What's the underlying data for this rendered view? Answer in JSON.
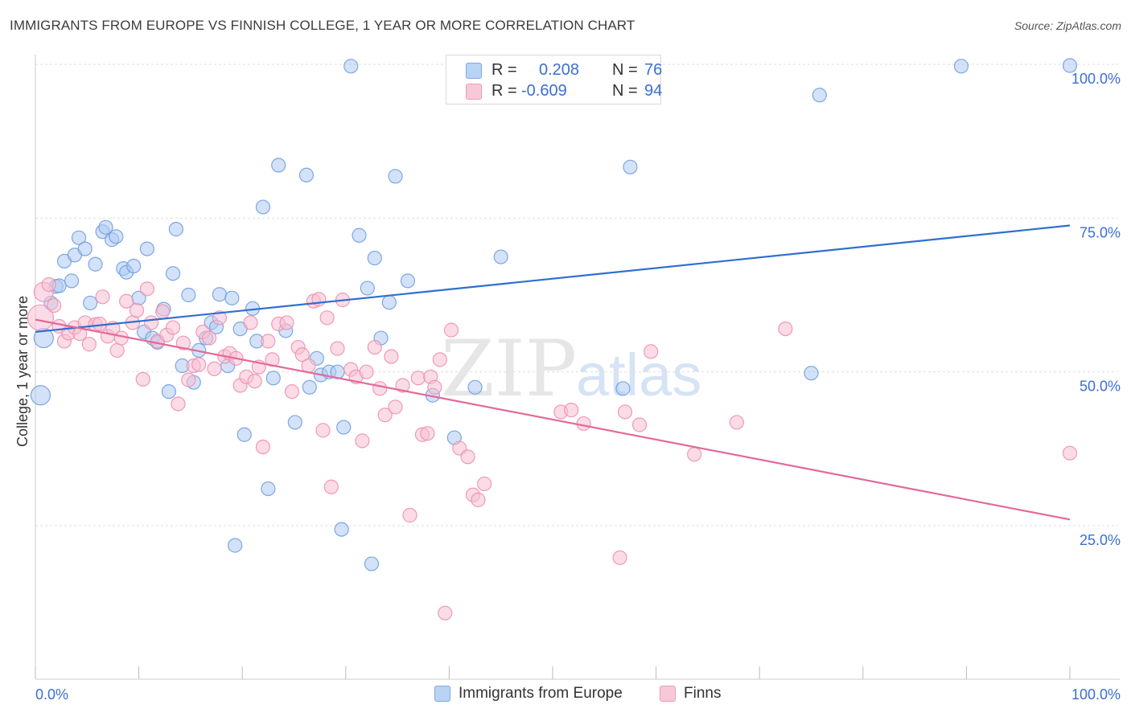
{
  "title": "IMMIGRANTS FROM EUROPE VS FINNISH COLLEGE, 1 YEAR OR MORE CORRELATION CHART",
  "source": "Source: ZipAtlas.com",
  "watermark": {
    "zip": "ZIP",
    "atlas": "atlas"
  },
  "legend_top": {
    "series1": {
      "r_label": "R =",
      "r_value": "0.208",
      "n_label": "N =",
      "n_value": "76"
    },
    "series2": {
      "r_label": "R =",
      "r_value": "-0.609",
      "n_label": "N =",
      "n_value": "94"
    }
  },
  "colors": {
    "blue_fill": "#aecbf2",
    "blue_stroke": "#6f9fe0",
    "blue_line": "#2f6fcf",
    "pink_fill": "#f7bfd2",
    "pink_stroke": "#ee8fb0",
    "pink_line": "#e36a98",
    "axis_text": "#3a6fd0",
    "grid": "#dddddd"
  },
  "chart_data": {
    "type": "scatter",
    "title": "IMMIGRANTS FROM EUROPE VS FINNISH COLLEGE, 1 YEAR OR MORE CORRELATION CHART",
    "xlabel": "",
    "ylabel": "College, 1 year or more",
    "xlim": [
      0,
      100
    ],
    "ylim": [
      0,
      103
    ],
    "x_tick_labels": [
      "0.0%",
      "100.0%"
    ],
    "y_ticks": [
      25,
      50,
      75,
      100
    ],
    "y_tick_labels": [
      "25.0%",
      "50.0%",
      "75.0%",
      "100.0%"
    ],
    "grid": true,
    "legend_position": "bottom-center",
    "series": [
      {
        "name": "Immigrants from Europe",
        "r": 0.208,
        "n": 76,
        "trend": {
          "x": [
            0,
            100
          ],
          "y": [
            56.5,
            73.8
          ]
        },
        "points": [
          [
            0.8,
            55.5,
            2
          ],
          [
            0.5,
            46.2,
            2
          ],
          [
            1.5,
            61.2,
            1
          ],
          [
            2.0,
            63.9,
            1
          ],
          [
            2.3,
            64.0,
            1
          ],
          [
            2.8,
            68.0,
            1
          ],
          [
            3.5,
            64.8,
            1
          ],
          [
            3.8,
            69.0,
            1
          ],
          [
            4.2,
            71.8,
            1
          ],
          [
            4.8,
            70.0,
            1
          ],
          [
            5.3,
            61.2,
            1
          ],
          [
            5.8,
            67.5,
            1
          ],
          [
            6.5,
            72.8,
            1
          ],
          [
            6.8,
            73.5,
            1
          ],
          [
            7.4,
            71.5,
            1
          ],
          [
            7.8,
            72.0,
            1
          ],
          [
            8.5,
            66.8,
            1
          ],
          [
            8.8,
            66.2,
            1
          ],
          [
            9.5,
            67.2,
            1
          ],
          [
            10.0,
            62.0,
            1
          ],
          [
            10.5,
            56.5,
            1
          ],
          [
            10.8,
            70.0,
            1
          ],
          [
            11.3,
            55.5,
            1
          ],
          [
            11.8,
            54.8,
            1
          ],
          [
            12.4,
            60.2,
            1
          ],
          [
            12.9,
            46.8,
            1
          ],
          [
            13.3,
            66.0,
            1
          ],
          [
            13.6,
            73.2,
            1
          ],
          [
            14.2,
            51.0,
            1
          ],
          [
            14.8,
            62.5,
            1
          ],
          [
            15.3,
            48.3,
            1
          ],
          [
            15.8,
            53.5,
            1
          ],
          [
            16.5,
            55.5,
            1
          ],
          [
            17.0,
            58.0,
            1
          ],
          [
            17.5,
            57.3,
            1
          ],
          [
            17.8,
            62.6,
            1
          ],
          [
            18.6,
            51.0,
            1
          ],
          [
            19.0,
            62.0,
            1
          ],
          [
            19.3,
            21.8,
            1
          ],
          [
            19.8,
            57.0,
            1
          ],
          [
            20.2,
            39.8,
            1
          ],
          [
            21.0,
            60.3,
            1
          ],
          [
            21.4,
            55.0,
            1
          ],
          [
            22.0,
            76.8,
            1
          ],
          [
            22.5,
            31.0,
            1
          ],
          [
            23.0,
            49.0,
            1
          ],
          [
            23.5,
            83.6,
            1
          ],
          [
            24.2,
            56.7,
            1
          ],
          [
            25.1,
            41.8,
            1
          ],
          [
            26.2,
            82.0,
            1
          ],
          [
            26.5,
            47.5,
            1
          ],
          [
            27.2,
            52.2,
            1
          ],
          [
            27.6,
            49.5,
            1
          ],
          [
            28.4,
            50.0,
            1
          ],
          [
            29.2,
            50.0,
            1
          ],
          [
            29.6,
            24.4,
            1
          ],
          [
            29.8,
            41.0,
            1
          ],
          [
            30.5,
            99.7,
            1
          ],
          [
            31.3,
            72.2,
            1
          ],
          [
            32.1,
            63.6,
            1
          ],
          [
            32.5,
            18.8,
            1
          ],
          [
            32.8,
            68.5,
            1
          ],
          [
            33.4,
            55.5,
            1
          ],
          [
            34.2,
            61.3,
            1
          ],
          [
            34.8,
            81.8,
            1
          ],
          [
            36.0,
            64.8,
            1
          ],
          [
            38.4,
            46.2,
            1
          ],
          [
            40.5,
            39.3,
            1
          ],
          [
            42.5,
            47.5,
            1
          ],
          [
            45.0,
            68.7,
            1
          ],
          [
            56.8,
            47.3,
            1
          ],
          [
            57.5,
            83.3,
            1
          ],
          [
            75.8,
            95.0,
            1
          ],
          [
            75.0,
            49.8,
            1
          ],
          [
            89.5,
            99.7,
            1
          ],
          [
            100.0,
            99.8,
            1
          ]
        ]
      },
      {
        "name": "Finns",
        "r": -0.609,
        "n": 94,
        "trend": {
          "x": [
            0,
            100
          ],
          "y": [
            58.5,
            26.0
          ]
        },
        "points": [
          [
            0.5,
            58.8,
            3
          ],
          [
            0.8,
            63.0,
            2
          ],
          [
            1.3,
            64.2,
            1
          ],
          [
            1.8,
            60.8,
            1
          ],
          [
            2.3,
            57.4,
            1
          ],
          [
            2.8,
            55.0,
            1
          ],
          [
            3.2,
            56.3,
            1
          ],
          [
            3.8,
            57.2,
            1
          ],
          [
            4.3,
            56.2,
            1
          ],
          [
            4.8,
            58.0,
            1
          ],
          [
            5.2,
            54.5,
            1
          ],
          [
            5.8,
            57.7,
            1
          ],
          [
            6.2,
            57.8,
            1
          ],
          [
            6.5,
            62.2,
            1
          ],
          [
            7.0,
            55.8,
            1
          ],
          [
            7.5,
            57.1,
            1
          ],
          [
            7.9,
            53.5,
            1
          ],
          [
            8.3,
            55.5,
            1
          ],
          [
            8.8,
            61.5,
            1
          ],
          [
            9.4,
            58.0,
            1
          ],
          [
            9.8,
            60.0,
            1
          ],
          [
            10.4,
            48.8,
            1
          ],
          [
            10.8,
            63.5,
            1
          ],
          [
            11.2,
            58.0,
            1
          ],
          [
            11.8,
            55.0,
            1
          ],
          [
            12.3,
            59.8,
            1
          ],
          [
            12.7,
            56.0,
            1
          ],
          [
            13.3,
            57.2,
            1
          ],
          [
            13.8,
            44.8,
            1
          ],
          [
            14.3,
            54.7,
            1
          ],
          [
            14.8,
            48.7,
            1
          ],
          [
            15.3,
            51.0,
            1
          ],
          [
            15.8,
            51.2,
            1
          ],
          [
            16.2,
            56.5,
            1
          ],
          [
            16.8,
            55.5,
            1
          ],
          [
            17.3,
            50.5,
            1
          ],
          [
            17.8,
            58.8,
            1
          ],
          [
            18.3,
            52.5,
            1
          ],
          [
            18.8,
            53.0,
            1
          ],
          [
            19.4,
            52.2,
            1
          ],
          [
            19.8,
            47.8,
            1
          ],
          [
            20.4,
            49.2,
            1
          ],
          [
            20.8,
            58.0,
            1
          ],
          [
            21.2,
            48.5,
            1
          ],
          [
            21.6,
            50.8,
            1
          ],
          [
            22.0,
            37.8,
            1
          ],
          [
            22.5,
            55.0,
            1
          ],
          [
            22.9,
            52.0,
            1
          ],
          [
            23.5,
            57.8,
            1
          ],
          [
            24.3,
            58.0,
            1
          ],
          [
            24.8,
            46.8,
            1
          ],
          [
            25.4,
            54.0,
            1
          ],
          [
            25.8,
            52.8,
            1
          ],
          [
            26.4,
            51.0,
            1
          ],
          [
            26.9,
            61.5,
            1
          ],
          [
            27.4,
            61.8,
            1
          ],
          [
            27.8,
            40.5,
            1
          ],
          [
            28.2,
            58.8,
            1
          ],
          [
            28.6,
            31.3,
            1
          ],
          [
            29.2,
            53.8,
            1
          ],
          [
            29.7,
            61.7,
            1
          ],
          [
            30.5,
            50.4,
            1
          ],
          [
            31.0,
            49.2,
            1
          ],
          [
            31.6,
            38.8,
            1
          ],
          [
            32.0,
            50.0,
            1
          ],
          [
            32.8,
            54.0,
            1
          ],
          [
            33.3,
            47.3,
            1
          ],
          [
            33.8,
            43.0,
            1
          ],
          [
            34.4,
            52.5,
            1
          ],
          [
            34.8,
            44.3,
            1
          ],
          [
            35.5,
            47.8,
            1
          ],
          [
            36.2,
            26.7,
            1
          ],
          [
            37.0,
            49.0,
            1
          ],
          [
            37.4,
            39.8,
            1
          ],
          [
            37.9,
            40.0,
            1
          ],
          [
            38.2,
            49.2,
            1
          ],
          [
            38.6,
            47.5,
            1
          ],
          [
            39.1,
            52.0,
            1
          ],
          [
            39.6,
            10.8,
            1
          ],
          [
            40.2,
            56.8,
            1
          ],
          [
            41.0,
            37.6,
            1
          ],
          [
            41.8,
            36.2,
            1
          ],
          [
            42.3,
            30.0,
            1
          ],
          [
            42.8,
            29.2,
            1
          ],
          [
            43.4,
            31.8,
            1
          ],
          [
            50.8,
            43.5,
            1
          ],
          [
            51.8,
            43.8,
            1
          ],
          [
            53.0,
            41.6,
            1
          ],
          [
            56.5,
            19.8,
            1
          ],
          [
            57.0,
            43.5,
            1
          ],
          [
            58.4,
            41.4,
            1
          ],
          [
            63.7,
            36.6,
            1
          ],
          [
            72.5,
            57.0,
            1
          ],
          [
            100.0,
            36.8,
            1
          ]
        ],
        "extra_points": [
          [
            59.5,
            53.3,
            1
          ],
          [
            67.8,
            41.8,
            1
          ]
        ]
      }
    ]
  },
  "legend_bottom": [
    "Immigrants from Europe",
    "Finns"
  ]
}
